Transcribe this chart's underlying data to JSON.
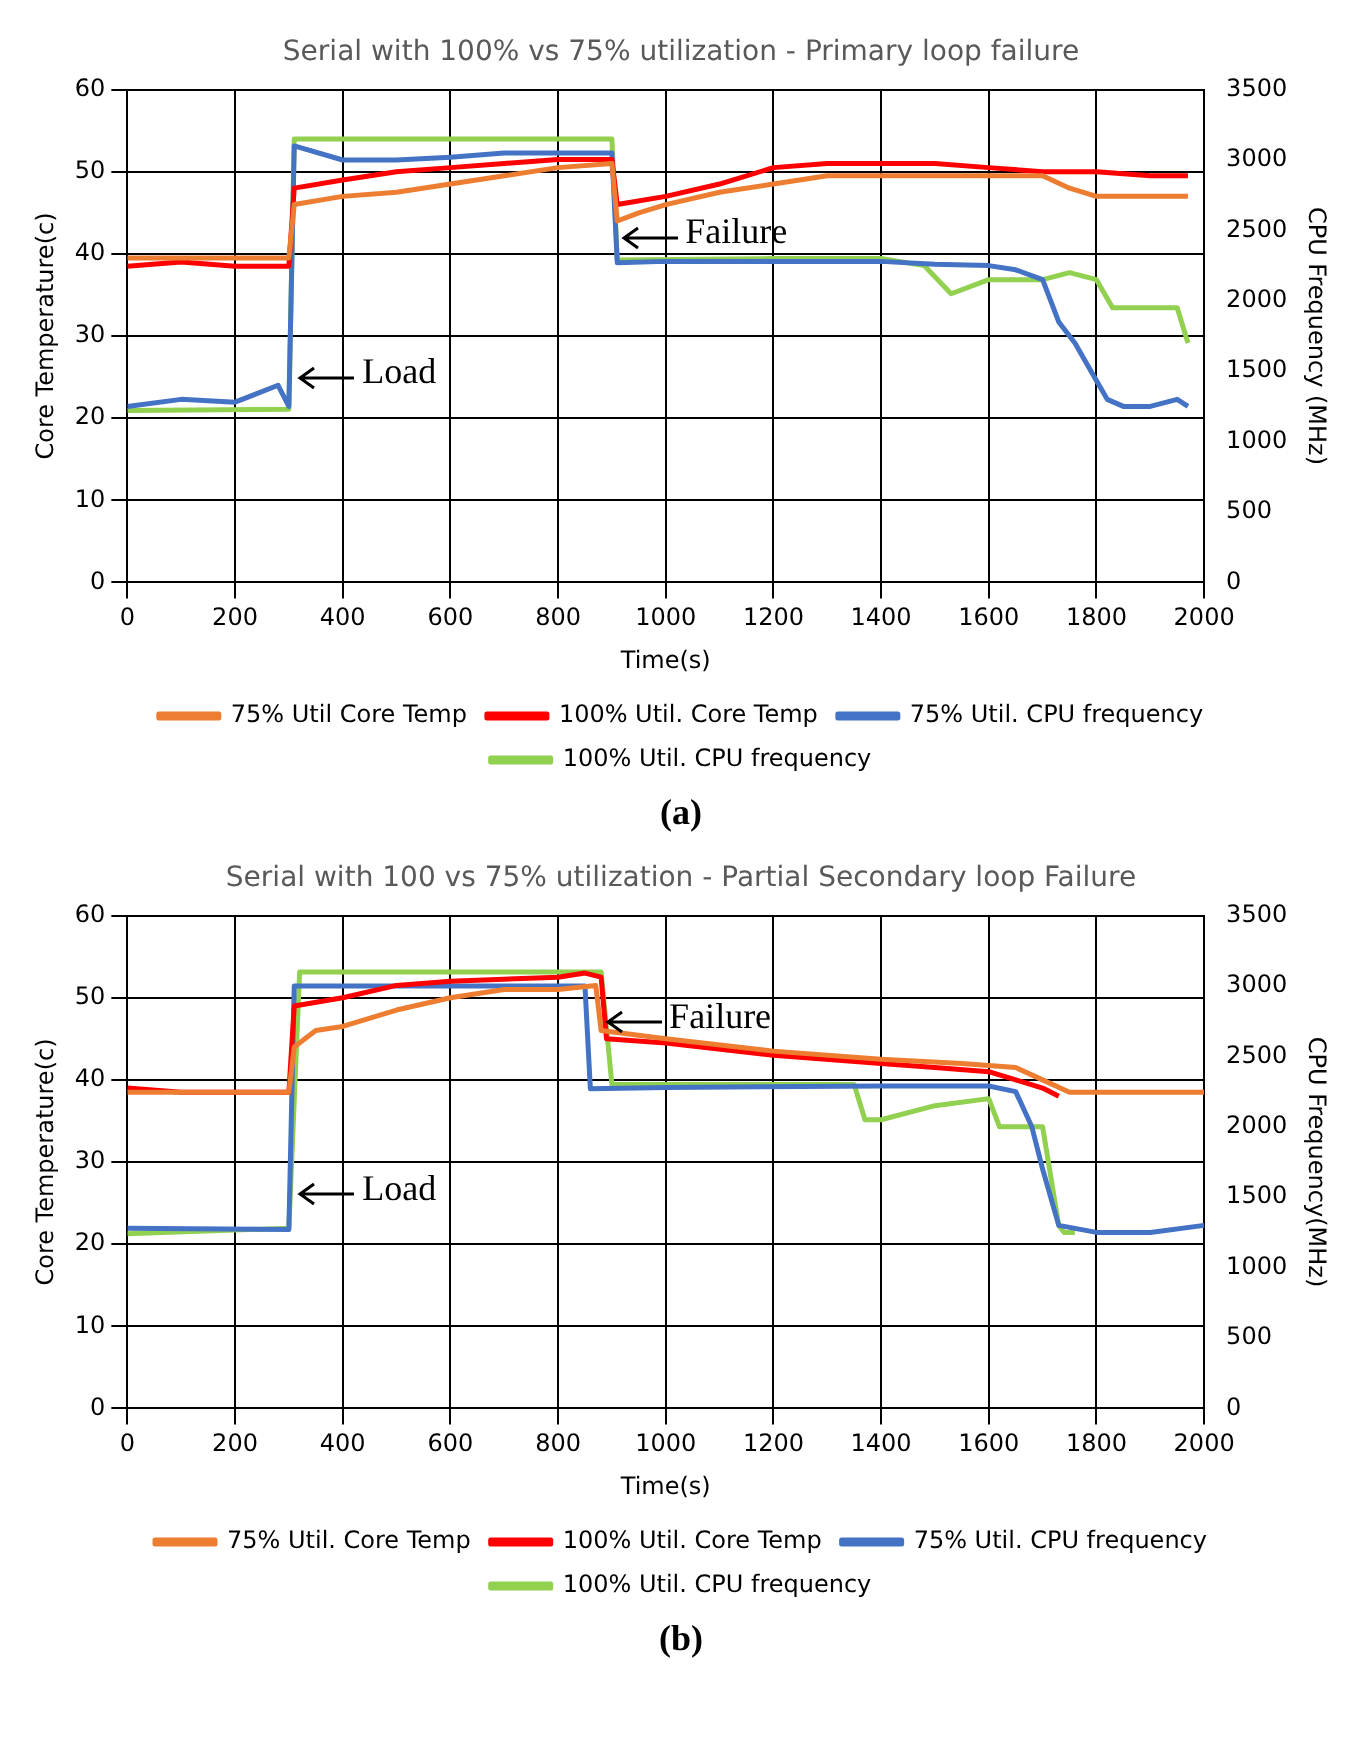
{
  "chart_data": [
    {
      "type": "line",
      "title": "Serial with 100% vs 75% utilization - Primary loop failure",
      "xlabel": "Time(s)",
      "ylabel": "Core Temperature(c)",
      "y2label": "CPU Frequency (MHz)",
      "xlim": [
        0,
        2000
      ],
      "xticks": [
        0,
        200,
        400,
        600,
        800,
        1000,
        1200,
        1400,
        1600,
        1800,
        2000
      ],
      "ylim": [
        0,
        60
      ],
      "yticks": [
        0,
        10,
        20,
        30,
        40,
        50,
        60
      ],
      "y2lim": [
        0,
        3500
      ],
      "y2ticks": [
        0,
        500,
        1000,
        1500,
        2000,
        2500,
        3000,
        3500
      ],
      "grid": true,
      "legend": "bottom",
      "marker": "none",
      "annotations": [
        {
          "text": "Load",
          "x": 310,
          "y": 25
        },
        {
          "text": "Failure",
          "x": 910,
          "y": 42
        },
        "(a)"
      ],
      "series": [
        {
          "name": "75% Util Core Temp",
          "color": "#ed7d31",
          "x": [
            0,
            100,
            200,
            300,
            310,
            400,
            500,
            600,
            700,
            800,
            900,
            910,
            950,
            1000,
            1100,
            1200,
            1300,
            1400,
            1500,
            1600,
            1700,
            1750,
            1800,
            1900,
            1970
          ],
          "values": [
            39.5,
            39.5,
            39.5,
            39.5,
            46,
            47,
            47.5,
            48.5,
            49.5,
            50.5,
            51,
            44,
            45,
            46,
            47.5,
            48.5,
            49.5,
            49.5,
            49.5,
            49.5,
            49.5,
            48,
            47,
            47,
            47
          ]
        },
        {
          "name": "100% Util. Core Temp",
          "color": "#ff0000",
          "x": [
            0,
            100,
            200,
            300,
            310,
            400,
            500,
            600,
            700,
            800,
            900,
            910,
            1000,
            1100,
            1200,
            1300,
            1400,
            1500,
            1600,
            1700,
            1800,
            1900,
            1970
          ],
          "values": [
            38.5,
            39,
            38.5,
            38.5,
            48,
            49,
            50,
            50.5,
            51,
            51.5,
            51.5,
            46,
            47,
            48.5,
            50.5,
            51,
            51,
            51,
            50.5,
            50,
            50,
            49.5,
            49.5
          ]
        },
        {
          "name": "75% Util. CPU frequency",
          "color": "#4472c4",
          "axis": "y2",
          "x": [
            0,
            100,
            200,
            280,
            300,
            310,
            400,
            500,
            600,
            700,
            800,
            900,
            910,
            1000,
            1200,
            1400,
            1500,
            1600,
            1650,
            1700,
            1730,
            1760,
            1790,
            1820,
            1850,
            1900,
            1950,
            1970
          ],
          "values": [
            1250,
            1300,
            1280,
            1400,
            1250,
            3100,
            3000,
            3000,
            3020,
            3050,
            3050,
            3050,
            2270,
            2280,
            2280,
            2280,
            2260,
            2250,
            2220,
            2150,
            1850,
            1700,
            1500,
            1300,
            1250,
            1250,
            1300,
            1250
          ]
        },
        {
          "name": "100% Util. CPU frequency",
          "color": "#92d050",
          "axis": "y2",
          "x": [
            0,
            300,
            310,
            600,
            900,
            910,
            1200,
            1400,
            1480,
            1530,
            1600,
            1700,
            1750,
            1800,
            1830,
            1950,
            1970
          ],
          "values": [
            1220,
            1230,
            3150,
            3150,
            3150,
            2290,
            2300,
            2300,
            2250,
            2050,
            2150,
            2150,
            2200,
            2150,
            1950,
            1950,
            1700
          ]
        }
      ]
    },
    {
      "type": "line",
      "title": "Serial with 100 vs 75% utilization - Partial Secondary loop Failure",
      "xlabel": "Time(s)",
      "ylabel": "Core Temperature(c)",
      "y2label": "CPU Frequency(MHz)",
      "xlim": [
        0,
        2000
      ],
      "xticks": [
        0,
        200,
        400,
        600,
        800,
        1000,
        1200,
        1400,
        1600,
        1800,
        2000
      ],
      "ylim": [
        0,
        60
      ],
      "yticks": [
        0,
        10,
        20,
        30,
        40,
        50,
        60
      ],
      "y2lim": [
        0,
        3500
      ],
      "y2ticks": [
        0,
        500,
        1000,
        1500,
        2000,
        2500,
        3000,
        3500
      ],
      "grid": true,
      "legend": "bottom",
      "marker": "none",
      "annotations": [
        {
          "text": "Load",
          "x": 310,
          "y": 26
        },
        {
          "text": "Failure",
          "x": 880,
          "y": 47
        },
        "(b)"
      ],
      "series": [
        {
          "name": "75% Util. Core Temp",
          "color": "#ed7d31",
          "x": [
            0,
            300,
            310,
            350,
            400,
            500,
            600,
            700,
            800,
            870,
            880,
            1000,
            1200,
            1400,
            1550,
            1650,
            1700,
            1750,
            1850,
            2000
          ],
          "values": [
            38.5,
            38.5,
            44,
            46,
            46.5,
            48.5,
            50,
            51,
            51,
            51.5,
            46,
            45,
            43.5,
            42.5,
            42,
            41.5,
            40,
            38.5,
            38.5,
            38.5
          ]
        },
        {
          "name": "100% Util. Core Temp",
          "color": "#ff0000",
          "x": [
            0,
            100,
            200,
            300,
            310,
            400,
            500,
            600,
            800,
            850,
            880,
            890,
            1000,
            1200,
            1400,
            1500,
            1600,
            1650,
            1700,
            1730
          ],
          "values": [
            39,
            38.5,
            38.5,
            38.5,
            49,
            50,
            51.5,
            52,
            52.5,
            53,
            52.5,
            45,
            44.5,
            43,
            42,
            41.5,
            41,
            40,
            39,
            38
          ]
        },
        {
          "name": "75% Util. CPU frequency",
          "color": "#4472c4",
          "axis": "y2",
          "x": [
            0,
            300,
            310,
            400,
            600,
            800,
            850,
            860,
            1000,
            1400,
            1600,
            1650,
            1680,
            1700,
            1730,
            1800,
            1900,
            2000
          ],
          "values": [
            1280,
            1270,
            3000,
            3000,
            3000,
            3000,
            3000,
            2270,
            2280,
            2290,
            2290,
            2250,
            2000,
            1700,
            1300,
            1250,
            1250,
            1300
          ]
        },
        {
          "name": "100% Util. CPU frequency",
          "color": "#92d050",
          "axis": "y2",
          "x": [
            0,
            300,
            320,
            600,
            880,
            900,
            1350,
            1370,
            1400,
            1500,
            1600,
            1620,
            1700,
            1730,
            1740,
            1760
          ],
          "values": [
            1240,
            1280,
            3100,
            3100,
            3100,
            2300,
            2300,
            2050,
            2050,
            2150,
            2200,
            2000,
            2000,
            1300,
            1250,
            1250
          ]
        }
      ]
    }
  ]
}
